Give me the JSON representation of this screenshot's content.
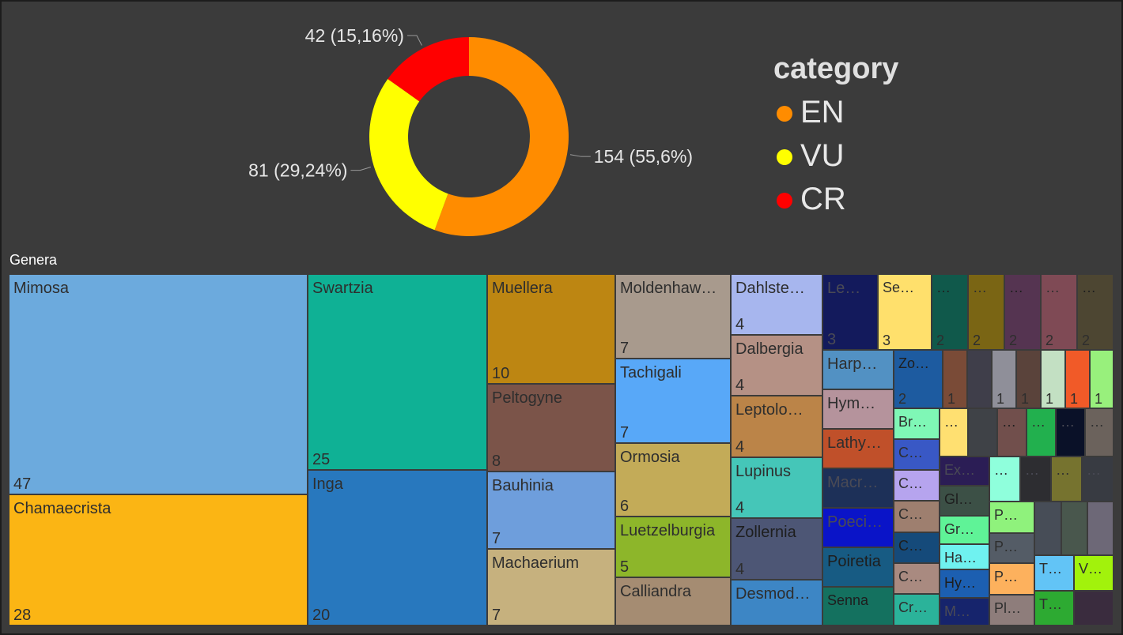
{
  "chart_data": [
    {
      "type": "pie",
      "variant": "donut",
      "legend_title": "category",
      "legend_position": "right",
      "slices": [
        {
          "label": "EN",
          "value": 154,
          "data_label": "154 (55,6%)",
          "color": "#ff8c00"
        },
        {
          "label": "VU",
          "value": 81,
          "data_label": "81 (29,24%)",
          "color": "#ffff00"
        },
        {
          "label": "CR",
          "value": 42,
          "data_label": "42 (15,16%)",
          "color": "#ff0000"
        }
      ]
    },
    {
      "type": "treemap",
      "title": "Genera",
      "items": [
        {
          "name": "Mimosa",
          "label": "Mimosa",
          "value": 47,
          "value_label": "47",
          "color": "#6caadd"
        },
        {
          "name": "Chamaecrista",
          "label": "Chamaecrista",
          "value": 28,
          "value_label": "28",
          "color": "#fbb514"
        },
        {
          "name": "Swartzia",
          "label": "Swartzia",
          "value": 25,
          "value_label": "25",
          "color": "#0fb195"
        },
        {
          "name": "Inga",
          "label": "Inga",
          "value": 20,
          "value_label": "20",
          "color": "#2878be"
        },
        {
          "name": "Muellera",
          "label": "Muellera",
          "value": 10,
          "value_label": "10",
          "color": "#bd8612"
        },
        {
          "name": "Peltogyne",
          "label": "Peltogyne",
          "value": 8,
          "value_label": "8",
          "color": "#7b5449"
        },
        {
          "name": "Bauhinia",
          "label": "Bauhinia",
          "value": 7,
          "value_label": "7",
          "color": "#6e9edc"
        },
        {
          "name": "Machaerium",
          "label": "Machaerium",
          "value": 7,
          "value_label": "7",
          "color": "#c6b17e"
        },
        {
          "name": "Moldenhawera",
          "label": "Moldenhaw…",
          "value": 7,
          "value_label": "7",
          "color": "#a89a8d"
        },
        {
          "name": "Tachigali",
          "label": "Tachigali",
          "value": 7,
          "value_label": "7",
          "color": "#58a8f8"
        },
        {
          "name": "Ormosia",
          "label": "Ormosia",
          "value": 6,
          "value_label": "6",
          "color": "#c3ab58"
        },
        {
          "name": "Luetzelburgia",
          "label": "Luetzelburgia",
          "value": 5,
          "value_label": "5",
          "color": "#8db62a"
        },
        {
          "name": "Calliandra",
          "label": "Calliandra",
          "value": 4,
          "value_label": "",
          "color": "#a58c72"
        },
        {
          "name": "Dahlstedtia",
          "label": "Dahlste…",
          "value": 4,
          "value_label": "4",
          "color": "#a7b6ee"
        },
        {
          "name": "Dalbergia",
          "label": "Dalbergia",
          "value": 4,
          "value_label": "4",
          "color": "#b59185"
        },
        {
          "name": "Leptolobium",
          "label": "Leptolo…",
          "value": 4,
          "value_label": "4",
          "color": "#bb8448"
        },
        {
          "name": "Lupinus",
          "label": "Lupinus",
          "value": 4,
          "value_label": "4",
          "color": "#45c6b8"
        },
        {
          "name": "Zollernia",
          "label": "Zollernia",
          "value": 4,
          "value_label": "4",
          "color": "#4d5675"
        },
        {
          "name": "Desmodium",
          "label": "Desmod…",
          "value": 4,
          "value_label": "",
          "color": "#3d86c5"
        },
        {
          "name": "Le",
          "label": "Le…",
          "value": 3,
          "value_label": "3",
          "color": "#131a5c"
        },
        {
          "name": "Se",
          "label": "Se…",
          "value": 3,
          "value_label": "3",
          "color": "#ffe06c"
        },
        {
          "name": "g2a",
          "label": "…",
          "value": 2,
          "value_label": "2",
          "color": "#10594b"
        },
        {
          "name": "g2b",
          "label": "…",
          "value": 2,
          "value_label": "2",
          "color": "#7a6514"
        },
        {
          "name": "g2c",
          "label": "…",
          "value": 2,
          "value_label": "2",
          "color": "#553451"
        },
        {
          "name": "g2d",
          "label": "…",
          "value": 2,
          "value_label": "2",
          "color": "#7f4a55"
        },
        {
          "name": "g2e",
          "label": "…",
          "value": 2,
          "value_label": "2",
          "color": "#4d4632"
        },
        {
          "name": "Harp",
          "label": "Harp…",
          "value": 2,
          "value_label": "",
          "color": "#5291c3"
        },
        {
          "name": "Hym",
          "label": "Hym…",
          "value": 2,
          "value_label": "",
          "color": "#b5939c"
        },
        {
          "name": "Lathy",
          "label": "Lathy…",
          "value": 2,
          "value_label": "",
          "color": "#c0502a"
        },
        {
          "name": "Macr",
          "label": "Macr…",
          "value": 2,
          "value_label": "",
          "color": "#1d3058"
        },
        {
          "name": "Poeci",
          "label": "Poeci…",
          "value": 2,
          "value_label": "",
          "color": "#0a14c8"
        },
        {
          "name": "Poiretia",
          "label": "Poiretia",
          "value": 2,
          "value_label": "",
          "color": "#175b83"
        },
        {
          "name": "Senna",
          "label": "Senna",
          "value": 2,
          "value_label": "",
          "color": "#14715f"
        },
        {
          "name": "Zo",
          "label": "Zo…",
          "value": 2,
          "value_label": "2",
          "color": "#1d5ba0"
        },
        {
          "name": "g1a",
          "label": "",
          "value": 1,
          "value_label": "1",
          "color": "#7a4b37"
        },
        {
          "name": "g1b",
          "label": "",
          "value": 1,
          "value_label": "",
          "color": "#3f3e4a"
        },
        {
          "name": "g1c",
          "label": "",
          "value": 1,
          "value_label": "1",
          "color": "#8f8f99"
        },
        {
          "name": "g1d",
          "label": "",
          "value": 1,
          "value_label": "1",
          "color": "#5a433b"
        },
        {
          "name": "g1e",
          "label": "",
          "value": 1,
          "value_label": "1",
          "color": "#c3e0c3"
        },
        {
          "name": "g1f",
          "label": "",
          "value": 1,
          "value_label": "1",
          "color": "#f15a28"
        },
        {
          "name": "g1g",
          "label": "",
          "value": 1,
          "value_label": "1",
          "color": "#98f07c"
        },
        {
          "name": "Br",
          "label": "Br…",
          "value": 1,
          "value_label": "",
          "color": "#7ff7b6"
        },
        {
          "name": "g1h",
          "label": "…",
          "value": 1,
          "value_label": "",
          "color": "#ffe071"
        },
        {
          "name": "g1i",
          "label": "",
          "value": 1,
          "value_label": "",
          "color": "#3f4247"
        },
        {
          "name": "g1j",
          "label": "…",
          "value": 1,
          "value_label": "",
          "color": "#714f4c"
        },
        {
          "name": "g1k",
          "label": "…",
          "value": 1,
          "value_label": "",
          "color": "#22b04e"
        },
        {
          "name": "g1l",
          "label": "…",
          "value": 1,
          "value_label": "",
          "color": "#0a1128"
        },
        {
          "name": "g1m",
          "label": "…",
          "value": 1,
          "value_label": "",
          "color": "#6b625c"
        },
        {
          "name": "C1",
          "label": "C…",
          "value": 1,
          "value_label": "",
          "color": "#3958c5"
        },
        {
          "name": "C2",
          "label": "C…",
          "value": 1,
          "value_label": "",
          "color": "#b6a4ee"
        },
        {
          "name": "C3",
          "label": "C…",
          "value": 1,
          "value_label": "",
          "color": "#9e7f6f"
        },
        {
          "name": "C4",
          "label": "C…",
          "value": 1,
          "value_label": "",
          "color": "#154a7a"
        },
        {
          "name": "C5",
          "label": "C…",
          "value": 1,
          "value_label": "",
          "color": "#a98a80"
        },
        {
          "name": "Cr",
          "label": "Cr…",
          "value": 1,
          "value_label": "",
          "color": "#2bb39a"
        },
        {
          "name": "Ex",
          "label": "Ex…",
          "value": 1,
          "value_label": "",
          "color": "#2b1d55"
        },
        {
          "name": "Gl",
          "label": "Gl…",
          "value": 1,
          "value_label": "",
          "color": "#3c5046"
        },
        {
          "name": "Gr",
          "label": "Gr…",
          "value": 1,
          "value_label": "",
          "color": "#5ff397"
        },
        {
          "name": "Ha",
          "label": "Ha…",
          "value": 1,
          "value_label": "",
          "color": "#6ff2f0"
        },
        {
          "name": "Hy",
          "label": "Hy…",
          "value": 1,
          "value_label": "",
          "color": "#1c5fb1"
        },
        {
          "name": "M",
          "label": "M…",
          "value": 1,
          "value_label": "",
          "color": "#16246c"
        },
        {
          "name": "g1n",
          "label": "…",
          "value": 1,
          "value_label": "",
          "color": "#8fffdc"
        },
        {
          "name": "g1o",
          "label": "…",
          "value": 1,
          "value_label": "",
          "color": "#2d2d31"
        },
        {
          "name": "g1p",
          "label": "…",
          "value": 1,
          "value_label": "",
          "color": "#76732f"
        },
        {
          "name": "g1q",
          "label": "…",
          "value": 1,
          "value_label": "",
          "color": "#383b42"
        },
        {
          "name": "P1",
          "label": "P…",
          "value": 1,
          "value_label": "",
          "color": "#8ff27c"
        },
        {
          "name": "P2",
          "label": "P…",
          "value": 1,
          "value_label": "",
          "color": "#545c66"
        },
        {
          "name": "P3",
          "label": "P…",
          "value": 1,
          "value_label": "",
          "color": "#fdb15d"
        },
        {
          "name": "Pl",
          "label": "Pl…",
          "value": 1,
          "value_label": "",
          "color": "#8e7d7b"
        },
        {
          "name": "g1r",
          "label": "",
          "value": 1,
          "value_label": "",
          "color": "#474d57"
        },
        {
          "name": "g1s",
          "label": "",
          "value": 1,
          "value_label": "",
          "color": "#49574d"
        },
        {
          "name": "g1t",
          "label": "",
          "value": 1,
          "value_label": "",
          "color": "#6d6877"
        },
        {
          "name": "T1",
          "label": "T…",
          "value": 1,
          "value_label": "",
          "color": "#62c4f6"
        },
        {
          "name": "V",
          "label": "V…",
          "value": 1,
          "value_label": "",
          "color": "#a2f20c"
        },
        {
          "name": "T2",
          "label": "T…",
          "value": 1,
          "value_label": "",
          "color": "#2daa32"
        },
        {
          "name": "g1u",
          "label": "",
          "value": 1,
          "value_label": "",
          "color": "#3a2c3e"
        }
      ]
    }
  ]
}
